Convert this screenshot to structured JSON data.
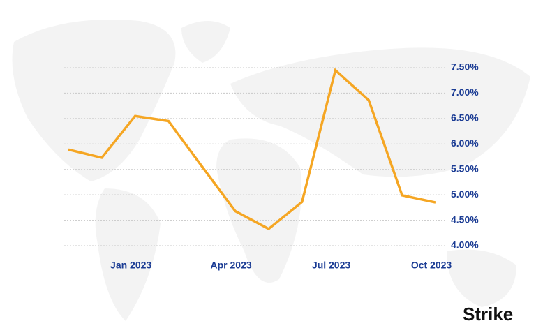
{
  "chart_data": {
    "type": "line",
    "categories": [
      null,
      null,
      "Jan 2023",
      null,
      null,
      "Apr 2023",
      null,
      null,
      "Jul 2023",
      null,
      null,
      "Oct 2023"
    ],
    "series": [
      {
        "name": null,
        "color": "#f5a623",
        "values": [
          5.89,
          5.73,
          6.55,
          6.45,
          5.56,
          4.68,
          4.33,
          4.86,
          7.45,
          6.86,
          4.99,
          4.85
        ]
      }
    ],
    "ylim": [
      4,
      7.5
    ],
    "yticks": [
      {
        "value": 4,
        "label": "4.00%"
      },
      {
        "value": 4.5,
        "label": "4.50%"
      },
      {
        "value": 5,
        "label": "5.00%"
      },
      {
        "value": 5.5,
        "label": "5.50%"
      },
      {
        "value": 6,
        "label": "6.00%"
      },
      {
        "value": 6.5,
        "label": "6.50%"
      },
      {
        "value": 7,
        "label": "7.00%"
      },
      {
        "value": 7.5,
        "label": "7.50%"
      }
    ],
    "grid": true
  },
  "brand": "Strike"
}
